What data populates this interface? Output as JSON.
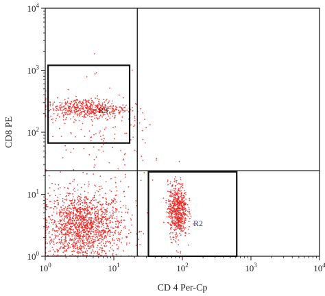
{
  "chart_data": {
    "type": "scatter",
    "title": "",
    "xlabel": "CD 4 Per-Cp",
    "ylabel": "CD8 PE",
    "x_scale": "log",
    "y_scale": "log",
    "xlim": [
      1,
      10000
    ],
    "ylim": [
      1,
      10000
    ],
    "x_ticks": [
      {
        "value": 1,
        "base": "10",
        "exp": "0"
      },
      {
        "value": 10,
        "base": "10",
        "exp": "1"
      },
      {
        "value": 100,
        "base": "10",
        "exp": "2"
      },
      {
        "value": 1000,
        "base": "10",
        "exp": "3"
      },
      {
        "value": 10000,
        "base": "10",
        "exp": "4"
      }
    ],
    "y_ticks": [
      {
        "value": 1,
        "base": "10",
        "exp": "0"
      },
      {
        "value": 10,
        "base": "10",
        "exp": "1"
      },
      {
        "value": 100,
        "base": "10",
        "exp": "2"
      },
      {
        "value": 1000,
        "base": "10",
        "exp": "3"
      },
      {
        "value": 10000,
        "base": "10",
        "exp": "4"
      }
    ],
    "point_color": "#e8231e",
    "grid": false,
    "quadrant_lines": {
      "x": 22,
      "y": 24
    },
    "gates": [
      {
        "name": "R3",
        "label_color": "#333333",
        "x_range": [
          1.1,
          17
        ],
        "y_range": [
          67,
          1200
        ],
        "label_at": [
          7,
          220
        ]
      },
      {
        "name": "R2",
        "label_color": "#2a3a7a",
        "x_range": [
          32,
          620
        ],
        "y_range": [
          1,
          23
        ],
        "label_at": [
          170,
          3.3
        ]
      }
    ],
    "populations": [
      {
        "description": "CD4-CD8- double negative",
        "center": [
          3.5,
          3.0
        ],
        "spread_decades": [
          0.3,
          0.28
        ],
        "count": 1600
      },
      {
        "description": "CD8+ (R3)",
        "center": [
          4.0,
          240
        ],
        "spread_decades": [
          0.3,
          0.08
        ],
        "count": 520
      },
      {
        "description": "CD4+ (R2)",
        "center": [
          85,
          5.5
        ],
        "spread_decades": [
          0.07,
          0.22
        ],
        "count": 650
      },
      {
        "description": "scattered events",
        "center": [
          8,
          60
        ],
        "spread_decades": [
          0.45,
          0.45
        ],
        "count": 140
      }
    ]
  }
}
